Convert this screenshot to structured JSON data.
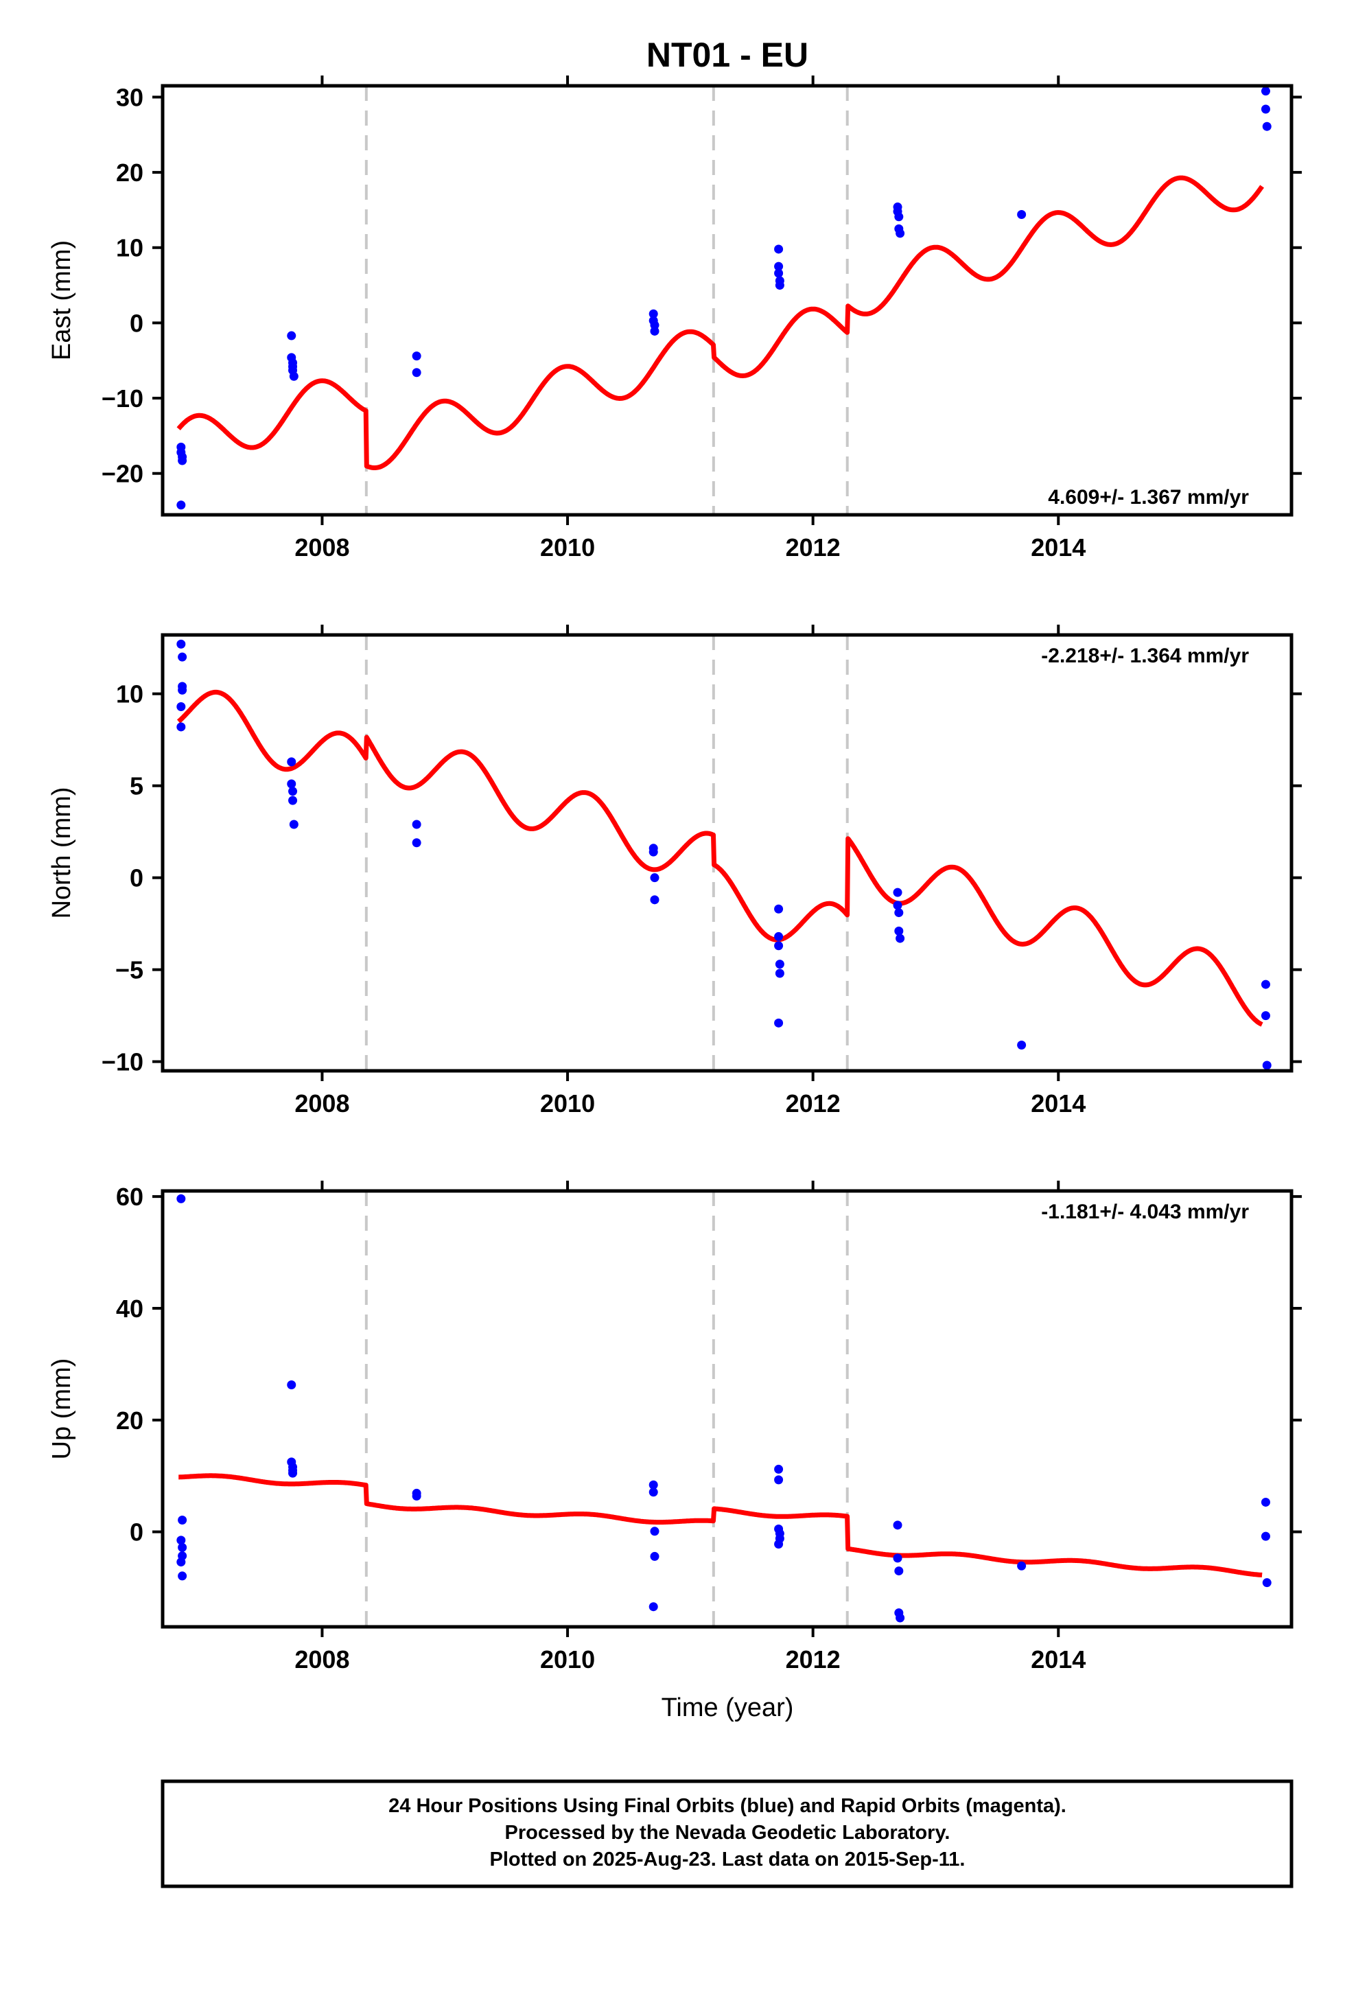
{
  "title": "NT01 - EU",
  "xlabel": "Time (year)",
  "footer": [
    "24 Hour Positions Using Final Orbits (blue) and Rapid Orbits (magenta).",
    "Processed by the Nevada Geodetic Laboratory.",
    "Plotted on 2025-Aug-23. Last data on 2015-Sep-11."
  ],
  "colors": {
    "final_orbits": "#0000ff",
    "model": "#ff0000",
    "steps": "#c8c8c8",
    "axes": "#000000"
  },
  "chart_data": [
    {
      "type": "scatter",
      "ylabel": "East (mm)",
      "rate": "4.609+/- 1.367 mm/yr",
      "rate_position": "bottom-right",
      "xlim": [
        2006.7,
        2015.9
      ],
      "ylim": [
        -25.5,
        31.5
      ],
      "xticks": [
        2008,
        2010,
        2012,
        2014
      ],
      "yticks": [
        -20,
        -10,
        0,
        10,
        20,
        30
      ],
      "steps": [
        2008.36,
        2011.19,
        2012.28
      ],
      "model": {
        "offset": -16.2,
        "rate": 4.609,
        "start": 2006.83,
        "end": 2015.66,
        "amplitude": 3.2,
        "phase": 1.8,
        "steps": [
          -7.3,
          -1.6,
          3.6
        ]
      },
      "points": [
        [
          2006.85,
          -16.5
        ],
        [
          2006.85,
          -17.2
        ],
        [
          2006.86,
          -17.8
        ],
        [
          2006.86,
          -18.3
        ],
        [
          2006.85,
          -24.2
        ],
        [
          2007.75,
          -1.7
        ],
        [
          2007.75,
          -4.6
        ],
        [
          2007.76,
          -5.3
        ],
        [
          2007.76,
          -5.8
        ],
        [
          2007.76,
          -6.3
        ],
        [
          2007.77,
          -7.1
        ],
        [
          2008.77,
          -4.4
        ],
        [
          2008.77,
          -6.6
        ],
        [
          2010.7,
          1.2
        ],
        [
          2010.7,
          0.3
        ],
        [
          2010.71,
          -0.3
        ],
        [
          2010.71,
          -1.1
        ],
        [
          2011.72,
          9.8
        ],
        [
          2011.72,
          7.5
        ],
        [
          2011.72,
          6.6
        ],
        [
          2011.73,
          5.6
        ],
        [
          2011.73,
          5.0
        ],
        [
          2012.69,
          15.4
        ],
        [
          2012.69,
          14.8
        ],
        [
          2012.7,
          14.1
        ],
        [
          2012.7,
          12.5
        ],
        [
          2012.71,
          11.9
        ],
        [
          2013.7,
          14.4
        ],
        [
          2015.69,
          30.8
        ],
        [
          2015.69,
          28.4
        ],
        [
          2015.7,
          26.1
        ]
      ]
    },
    {
      "type": "scatter",
      "ylabel": "North (mm)",
      "rate": "-2.218+/- 1.364 mm/yr",
      "rate_position": "top-right",
      "xlim": [
        2006.7,
        2015.9
      ],
      "ylim": [
        -10.5,
        13.2
      ],
      "xticks": [
        2008,
        2010,
        2012,
        2014
      ],
      "yticks": [
        -10,
        -5,
        0,
        5,
        10
      ],
      "steps": [
        2008.36,
        2011.19,
        2012.28
      ],
      "model": {
        "offset": 9.3,
        "rate": -2.218,
        "start": 2006.83,
        "end": 2015.66,
        "amplitude": 1.5,
        "phase": 0.5,
        "steps": [
          1.2,
          -1.6,
          4.2
        ]
      },
      "points": [
        [
          2006.85,
          12.7
        ],
        [
          2006.86,
          12.0
        ],
        [
          2006.86,
          10.4
        ],
        [
          2006.86,
          10.2
        ],
        [
          2006.85,
          9.3
        ],
        [
          2006.85,
          8.2
        ],
        [
          2007.75,
          6.3
        ],
        [
          2007.75,
          5.1
        ],
        [
          2007.76,
          4.7
        ],
        [
          2007.76,
          4.2
        ],
        [
          2007.77,
          2.9
        ],
        [
          2008.77,
          2.9
        ],
        [
          2008.77,
          1.9
        ],
        [
          2010.7,
          1.6
        ],
        [
          2010.7,
          1.4
        ],
        [
          2010.71,
          0.0
        ],
        [
          2010.71,
          -1.2
        ],
        [
          2011.72,
          -1.7
        ],
        [
          2011.72,
          -3.2
        ],
        [
          2011.72,
          -3.7
        ],
        [
          2011.73,
          -4.7
        ],
        [
          2011.73,
          -5.2
        ],
        [
          2011.72,
          -7.9
        ],
        [
          2012.69,
          -0.8
        ],
        [
          2012.69,
          -1.5
        ],
        [
          2012.7,
          -1.9
        ],
        [
          2012.7,
          -2.9
        ],
        [
          2012.71,
          -3.3
        ],
        [
          2013.7,
          -9.1
        ],
        [
          2015.69,
          -5.8
        ],
        [
          2015.69,
          -7.5
        ],
        [
          2015.7,
          -10.2
        ]
      ]
    },
    {
      "type": "scatter",
      "ylabel": "Up (mm)",
      "rate": "-1.181+/- 4.043 mm/yr",
      "rate_position": "top-right",
      "xlim": [
        2006.7,
        2015.9
      ],
      "ylim": [
        -17,
        61
      ],
      "xticks": [
        2008,
        2010,
        2012,
        2014
      ],
      "yticks": [
        0,
        20,
        40,
        60
      ],
      "steps": [
        2008.36,
        2011.19,
        2012.28
      ],
      "model": {
        "offset": 10.0,
        "rate": -1.181,
        "start": 2006.83,
        "end": 2015.66,
        "amplitude": 0.4,
        "phase": 0.5,
        "steps": [
          -3.3,
          2.2,
          -5.8
        ]
      },
      "points": [
        [
          2006.85,
          59.6
        ],
        [
          2006.86,
          2.1
        ],
        [
          2006.85,
          -1.5
        ],
        [
          2006.86,
          -2.8
        ],
        [
          2006.86,
          -4.3
        ],
        [
          2006.85,
          -5.4
        ],
        [
          2006.86,
          -7.9
        ],
        [
          2007.75,
          26.3
        ],
        [
          2007.75,
          12.5
        ],
        [
          2007.76,
          11.6
        ],
        [
          2007.76,
          11.0
        ],
        [
          2007.76,
          10.5
        ],
        [
          2008.77,
          6.9
        ],
        [
          2008.77,
          6.4
        ],
        [
          2010.7,
          8.4
        ],
        [
          2010.7,
          7.1
        ],
        [
          2010.71,
          0.1
        ],
        [
          2010.71,
          -4.4
        ],
        [
          2010.7,
          -13.4
        ],
        [
          2011.72,
          11.2
        ],
        [
          2011.72,
          9.3
        ],
        [
          2011.72,
          0.5
        ],
        [
          2011.73,
          -0.3
        ],
        [
          2011.73,
          -1.2
        ],
        [
          2011.72,
          -2.2
        ],
        [
          2012.69,
          1.2
        ],
        [
          2012.69,
          -4.7
        ],
        [
          2012.7,
          -7.0
        ],
        [
          2012.7,
          -14.5
        ],
        [
          2012.71,
          -15.4
        ],
        [
          2013.7,
          -6.1
        ],
        [
          2015.69,
          5.3
        ],
        [
          2015.69,
          -0.8
        ],
        [
          2015.7,
          -9.1
        ]
      ]
    }
  ]
}
